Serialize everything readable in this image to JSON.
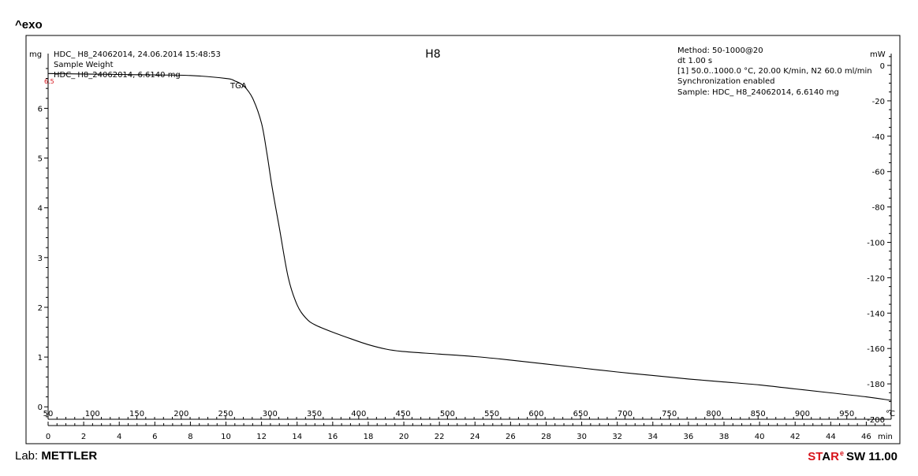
{
  "header": {
    "exo_label": "^exo"
  },
  "footer": {
    "lab_prefix": "Lab:",
    "lab_name": "METTLER",
    "brand_a": "ST",
    "brand_b": "A",
    "brand_c": "R",
    "brand_sup": "e",
    "brand_tail": "SW 11.00"
  },
  "chart_data": {
    "type": "line",
    "title": "H8",
    "info_left": [
      "HDC_ H8_24062014, 24.06.2014 15:48:53",
      "Sample Weight",
      "HDC_ H8_24062014, 6.6140 mg"
    ],
    "info_right": [
      "Method: 50-1000@20",
      "dt 1.00 s",
      "[1] 50.0..1000.0 °C, 20.00 K/min, N2 60.0 ml/min",
      "Synchronization enabled",
      "Sample: HDC_ H8_24062014, 6.6140 mg"
    ],
    "series": [
      {
        "label": "TGA",
        "x_min": [
          0,
          2,
          4,
          6,
          8,
          10,
          10.5,
          11,
          11.5,
          12,
          12.3,
          12.6,
          13,
          13.5,
          14,
          14.5,
          15,
          16,
          17,
          18,
          19,
          20,
          22,
          24,
          26,
          28,
          30,
          32,
          34,
          36,
          38,
          40,
          42,
          44,
          46,
          47.4
        ],
        "y_mg": [
          6.7,
          6.69,
          6.68,
          6.67,
          6.66,
          6.6,
          6.55,
          6.45,
          6.2,
          5.7,
          5.1,
          4.4,
          3.6,
          2.6,
          2.05,
          1.78,
          1.65,
          1.5,
          1.37,
          1.25,
          1.16,
          1.11,
          1.06,
          1.01,
          0.94,
          0.86,
          0.78,
          0.7,
          0.63,
          0.56,
          0.5,
          0.44,
          0.36,
          0.28,
          0.2,
          0.13
        ]
      }
    ],
    "ylabel_left": "mg",
    "ylabel_right": "mW",
    "y_left_ticks": [
      0,
      1,
      2,
      3,
      4,
      5,
      6
    ],
    "y_left_range": [
      -0.25,
      7.1
    ],
    "y_right_ticks": [
      0,
      -20,
      -40,
      -60,
      -80,
      -100,
      -120,
      -140,
      -160,
      -180,
      -200
    ],
    "y_right_range": [
      -200,
      6.7
    ],
    "x_time_ticks": [
      0,
      2,
      4,
      6,
      8,
      10,
      12,
      14,
      16,
      18,
      20,
      22,
      24,
      26,
      28,
      30,
      32,
      34,
      36,
      38,
      40,
      42,
      44,
      46
    ],
    "x_time_unit": "min",
    "x_time_range": [
      0,
      47.4
    ],
    "x_temp_ticks": [
      50,
      100,
      150,
      200,
      250,
      300,
      350,
      400,
      450,
      500,
      550,
      600,
      650,
      700,
      750,
      800,
      850,
      900,
      950
    ],
    "x_temp_unit": "°C",
    "x_temp_range": [
      50,
      1000
    ],
    "marker_label": "6.5"
  }
}
